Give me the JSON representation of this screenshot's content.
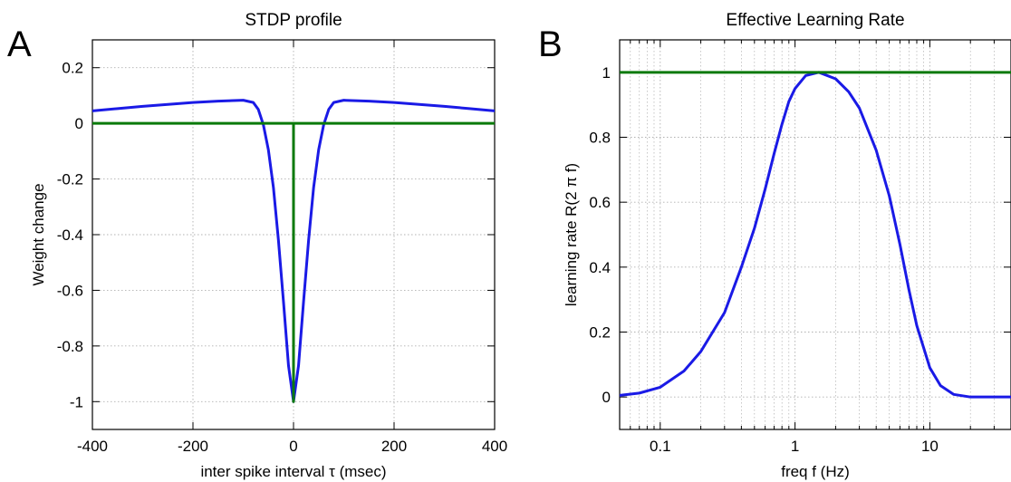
{
  "chart_data": [
    {
      "panel_letter": "A",
      "type": "line",
      "title": "STDP profile",
      "xlabel": "inter spike interval τ (msec)",
      "ylabel": "Weight change",
      "xlim": [
        -400,
        400
      ],
      "ylim": [
        -1.1,
        0.3
      ],
      "x_scale": "linear",
      "xticks": [
        -400,
        -200,
        0,
        200,
        400
      ],
      "xtick_labels": [
        "-400",
        "-200",
        "0",
        "200",
        "400"
      ],
      "yticks": [
        0.2,
        0,
        -0.2,
        -0.4,
        -0.6,
        -0.8,
        -1
      ],
      "ytick_labels": [
        "0.2",
        "0",
        "-0.2",
        "-0.4",
        "-0.6",
        "-0.8",
        "-1"
      ],
      "grid": true,
      "colors": {
        "series1": "#1a1ae6",
        "series2": "#0a7a0a"
      },
      "series": [
        {
          "color": "#1a1ae6",
          "x": [
            -400,
            -350,
            -300,
            -250,
            -200,
            -150,
            -100,
            -80,
            -70,
            -60,
            -50,
            -40,
            -30,
            -20,
            -10,
            0,
            10,
            20,
            30,
            40,
            50,
            60,
            70,
            80,
            100,
            150,
            200,
            250,
            300,
            350,
            400
          ],
          "y": [
            0.045,
            0.053,
            0.061,
            0.068,
            0.075,
            0.08,
            0.083,
            0.075,
            0.05,
            -0.005,
            -0.095,
            -0.23,
            -0.42,
            -0.64,
            -0.87,
            -1.0,
            -0.87,
            -0.64,
            -0.42,
            -0.23,
            -0.095,
            -0.005,
            0.05,
            0.075,
            0.083,
            0.08,
            0.075,
            0.068,
            0.061,
            0.053,
            0.045
          ]
        },
        {
          "color": "#0a7a0a",
          "x": [
            -400,
            0,
            0,
            0,
            400
          ],
          "y": [
            0,
            0,
            -1,
            0,
            0
          ]
        }
      ]
    },
    {
      "panel_letter": "B",
      "type": "line",
      "title": "Effective Learning Rate",
      "xlabel": "freq f (Hz)",
      "ylabel": "learning rate R(2 π f)",
      "xlim": [
        0.05,
        40
      ],
      "ylim": [
        -0.1,
        1.1
      ],
      "x_scale": "log",
      "xticks": [
        0.1,
        1,
        10
      ],
      "xtick_labels": [
        "0.1",
        "1",
        "10"
      ],
      "yticks": [
        1,
        0.8,
        0.6,
        0.4,
        0.2,
        0
      ],
      "ytick_labels": [
        "1",
        "0.8",
        "0.6",
        "0.4",
        "0.2",
        "0"
      ],
      "grid": true,
      "colors": {
        "series1": "#1a1ae6",
        "series2": "#0a7a0a"
      },
      "series": [
        {
          "color": "#1a1ae6",
          "x": [
            0.05,
            0.07,
            0.1,
            0.15,
            0.2,
            0.3,
            0.4,
            0.5,
            0.6,
            0.7,
            0.8,
            0.9,
            1.0,
            1.2,
            1.5,
            2,
            2.5,
            3,
            4,
            5,
            6,
            7,
            8,
            10,
            12,
            15,
            20,
            25,
            30,
            40
          ],
          "y": [
            0.005,
            0.012,
            0.03,
            0.08,
            0.14,
            0.26,
            0.4,
            0.52,
            0.64,
            0.75,
            0.84,
            0.91,
            0.95,
            0.99,
            1.0,
            0.98,
            0.94,
            0.89,
            0.76,
            0.62,
            0.47,
            0.33,
            0.22,
            0.09,
            0.035,
            0.008,
            0.0,
            0.0,
            0.0,
            0.0
          ]
        },
        {
          "color": "#0a7a0a",
          "x": [
            0.05,
            40
          ],
          "y": [
            1,
            1
          ]
        }
      ]
    }
  ]
}
